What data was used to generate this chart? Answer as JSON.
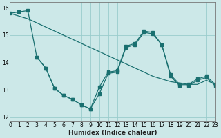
{
  "xlabel": "Humidex (Indice chaleur)",
  "background_color": "#cce8e8",
  "grid_color": "#99cccc",
  "line_color": "#1a7070",
  "xlim": [
    0,
    23
  ],
  "ylim": [
    11.85,
    16.2
  ],
  "yticks": [
    12,
    13,
    14,
    15,
    16
  ],
  "xticks": [
    0,
    1,
    2,
    3,
    4,
    5,
    6,
    7,
    8,
    9,
    10,
    11,
    12,
    13,
    14,
    15,
    16,
    17,
    18,
    19,
    20,
    21,
    22,
    23
  ],
  "series": [
    {
      "x": [
        0,
        1,
        2,
        3,
        4,
        5,
        6,
        7,
        8,
        9,
        10,
        11,
        12,
        13,
        14,
        15,
        16,
        17,
        18,
        19,
        20,
        21,
        22,
        23
      ],
      "y": [
        15.8,
        15.7,
        15.6,
        15.45,
        15.3,
        15.15,
        15.0,
        14.85,
        14.7,
        14.55,
        14.4,
        14.25,
        14.1,
        13.95,
        13.8,
        13.65,
        13.5,
        13.4,
        13.3,
        13.25,
        13.2,
        13.2,
        13.35,
        13.2
      ],
      "marker": null,
      "linestyle": "-"
    },
    {
      "x": [
        0,
        1,
        2,
        3,
        4,
        5,
        6,
        7,
        8,
        9,
        10,
        11,
        12,
        13,
        14,
        15,
        16,
        17,
        18,
        19,
        20,
        21,
        22,
        23
      ],
      "y": [
        15.8,
        15.85,
        15.9,
        14.2,
        13.8,
        13.05,
        12.8,
        12.65,
        12.45,
        12.3,
        13.1,
        13.65,
        13.7,
        14.6,
        14.7,
        15.15,
        15.1,
        14.65,
        13.55,
        13.2,
        13.2,
        13.4,
        13.5,
        13.2
      ],
      "marker": "s",
      "linestyle": "-"
    },
    {
      "x": [
        3,
        4,
        5,
        6,
        7,
        8,
        9,
        10,
        11,
        12,
        13,
        14,
        15,
        16,
        17,
        18,
        19,
        20,
        21,
        22,
        23
      ],
      "y": [
        14.2,
        13.8,
        13.05,
        12.8,
        12.65,
        12.45,
        12.3,
        12.85,
        13.6,
        13.65,
        14.55,
        14.65,
        15.1,
        15.05,
        14.65,
        13.5,
        13.15,
        13.15,
        13.35,
        13.45,
        13.15
      ],
      "marker": "s",
      "linestyle": "-"
    }
  ]
}
